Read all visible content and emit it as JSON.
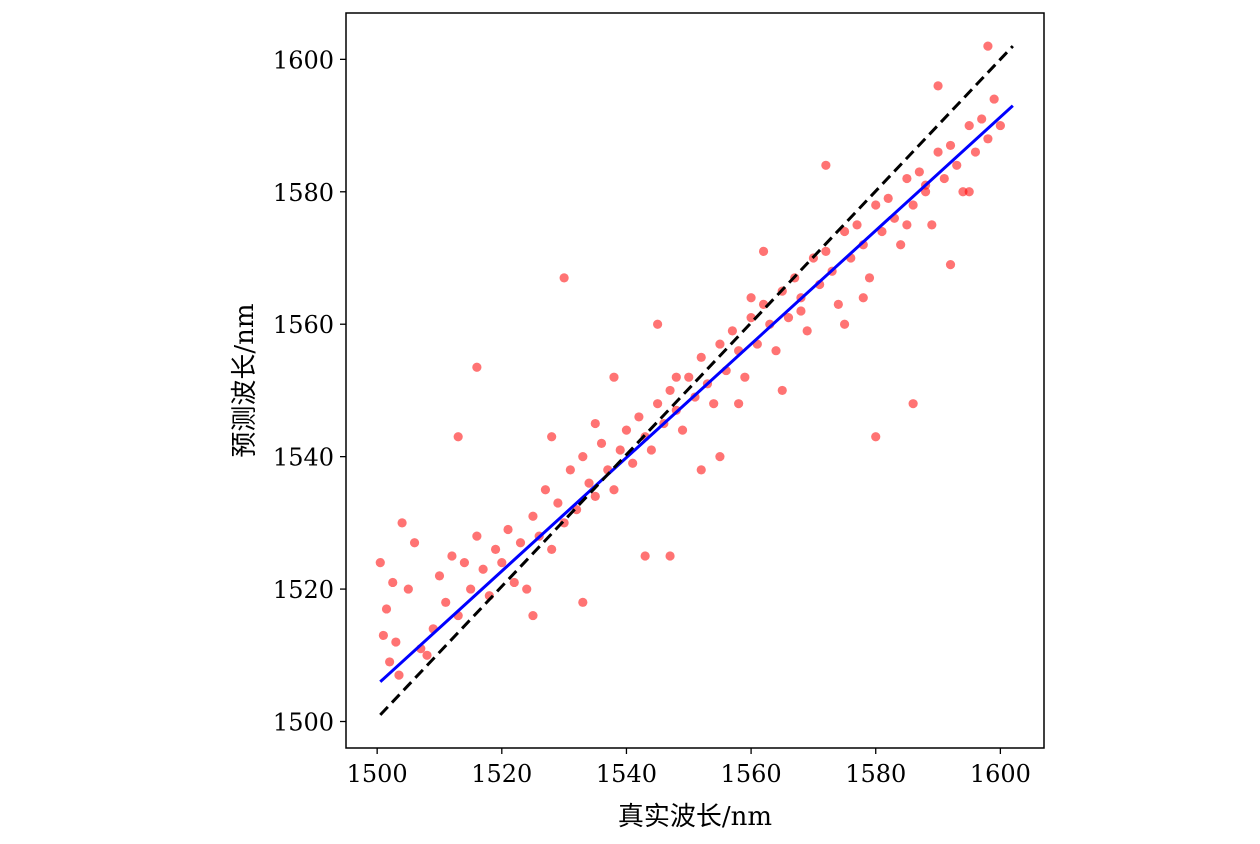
{
  "chart_data": {
    "type": "scatter",
    "xlabel": "真实波长/nm",
    "ylabel": "预测波长/nm",
    "xlim": [
      1495,
      1607
    ],
    "ylim": [
      1496,
      1607
    ],
    "x_ticks": [
      1500,
      1520,
      1540,
      1560,
      1580,
      1600
    ],
    "y_ticks": [
      1500,
      1520,
      1540,
      1560,
      1580,
      1600
    ],
    "x_tick_labels": [
      "1500",
      "1520",
      "1540",
      "1560",
      "1580",
      "1600"
    ],
    "y_tick_labels": [
      "1500",
      "1520",
      "1540",
      "1560",
      "1580",
      "1600"
    ],
    "grid": false,
    "colors": {
      "points": "#ff0000",
      "fit_line": "#0000ff",
      "ideal_line": "#000000"
    },
    "series": [
      {
        "kind": "scatter",
        "color": "#ff0000",
        "alpha": 0.55,
        "x": [
          1500.5,
          1501,
          1501.5,
          1502,
          1502.5,
          1503,
          1503.5,
          1504,
          1505,
          1506,
          1507,
          1508,
          1509,
          1510,
          1511,
          1512,
          1513,
          1514,
          1515,
          1516,
          1517,
          1518,
          1519,
          1520,
          1521,
          1522,
          1523,
          1524,
          1525,
          1526,
          1527,
          1528,
          1529,
          1530,
          1531,
          1532,
          1533,
          1534,
          1535,
          1536,
          1537,
          1538,
          1539,
          1540,
          1541,
          1542,
          1543,
          1544,
          1545,
          1546,
          1547,
          1548,
          1549,
          1550,
          1551,
          1552,
          1553,
          1554,
          1555,
          1556,
          1557,
          1558,
          1559,
          1560,
          1561,
          1562,
          1563,
          1564,
          1565,
          1566,
          1567,
          1568,
          1569,
          1570,
          1571,
          1572,
          1573,
          1574,
          1575,
          1576,
          1577,
          1578,
          1579,
          1580,
          1581,
          1582,
          1583,
          1584,
          1585,
          1586,
          1587,
          1588,
          1589,
          1590,
          1591,
          1592,
          1593,
          1594,
          1595,
          1596,
          1597,
          1598,
          1599,
          1600,
          1516,
          1530,
          1547,
          1586,
          1580,
          1513,
          1548,
          1560,
          1572,
          1598,
          1590,
          1545,
          1525,
          1535,
          1555,
          1565,
          1575,
          1585,
          1595,
          1543,
          1538,
          1552,
          1528,
          1533,
          1558,
          1562,
          1568,
          1578,
          1588,
          1592
        ],
        "y": [
          1524,
          1513,
          1517,
          1509,
          1521,
          1512,
          1507,
          1530,
          1520,
          1527,
          1511,
          1510,
          1514,
          1522,
          1518,
          1525,
          1516,
          1524,
          1520,
          1528,
          1523,
          1519,
          1526,
          1524,
          1529,
          1521,
          1527,
          1520,
          1531,
          1528,
          1535,
          1526,
          1533,
          1530,
          1538,
          1532,
          1540,
          1536,
          1534,
          1542,
          1538,
          1535,
          1541,
          1544,
          1539,
          1546,
          1543,
          1541,
          1548,
          1545,
          1550,
          1547,
          1544,
          1552,
          1549,
          1555,
          1551,
          1548,
          1557,
          1553,
          1559,
          1556,
          1552,
          1561,
          1557,
          1563,
          1560,
          1556,
          1565,
          1561,
          1567,
          1564,
          1559,
          1570,
          1566,
          1571,
          1568,
          1563,
          1574,
          1570,
          1575,
          1572,
          1567,
          1578,
          1574,
          1579,
          1576,
          1572,
          1582,
          1578,
          1583,
          1580,
          1575,
          1586,
          1582,
          1587,
          1584,
          1580,
          1590,
          1586,
          1591,
          1588,
          1594,
          1590,
          1553.5,
          1567,
          1525,
          1548,
          1543,
          1543,
          1552,
          1564,
          1584,
          1602,
          1596,
          1560,
          1516,
          1545,
          1540,
          1550,
          1560,
          1575,
          1580,
          1525,
          1552,
          1538,
          1543,
          1518,
          1548,
          1571,
          1562,
          1564,
          1581,
          1569
        ]
      },
      {
        "kind": "line",
        "name": "",
        "color": "#0000ff",
        "x": [
          1500.5,
          1602
        ],
        "y": [
          1506,
          1593
        ]
      },
      {
        "kind": "line",
        "name": "",
        "color": "#000000",
        "dashed": true,
        "x": [
          1500.5,
          1602
        ],
        "y": [
          1501,
          1602
        ]
      }
    ]
  }
}
